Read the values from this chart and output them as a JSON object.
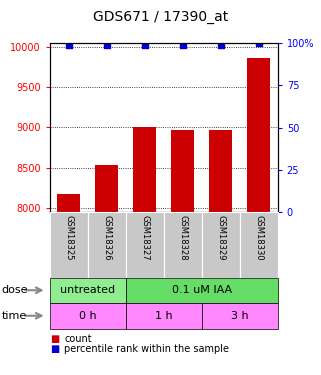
{
  "title": "GDS671 / 17390_at",
  "samples": [
    "GSM18325",
    "GSM18326",
    "GSM18327",
    "GSM18328",
    "GSM18329",
    "GSM18330"
  ],
  "bar_values": [
    8175,
    8530,
    9010,
    8970,
    8970,
    9870
  ],
  "blue_dot_values": [
    99,
    99,
    99,
    99,
    99,
    100
  ],
  "ylim_left": [
    7950,
    10050
  ],
  "ylim_right": [
    0,
    100
  ],
  "yticks_left": [
    8000,
    8500,
    9000,
    9500,
    10000
  ],
  "yticks_right": [
    0,
    25,
    50,
    75,
    100
  ],
  "bar_color": "#cc0000",
  "dot_color": "#0000cc",
  "bar_width": 0.6,
  "dose_labels": [
    {
      "label": "untreated",
      "span": [
        0,
        2
      ],
      "color": "#90ee90"
    },
    {
      "label": "0.1 uM IAA",
      "span": [
        2,
        6
      ],
      "color": "#66dd66"
    }
  ],
  "time_labels": [
    {
      "label": "0 h",
      "span": [
        0,
        2
      ],
      "color": "#ff88ff"
    },
    {
      "label": "1 h",
      "span": [
        2,
        4
      ],
      "color": "#ff88ff"
    },
    {
      "label": "3 h",
      "span": [
        4,
        6
      ],
      "color": "#ff88ff"
    }
  ],
  "legend_items": [
    {
      "label": "count",
      "color": "#cc0000"
    },
    {
      "label": "percentile rank within the sample",
      "color": "#0000cc"
    }
  ],
  "grid_color": "black",
  "label_area_bg": "#c8c8c8",
  "title_fontsize": 10
}
